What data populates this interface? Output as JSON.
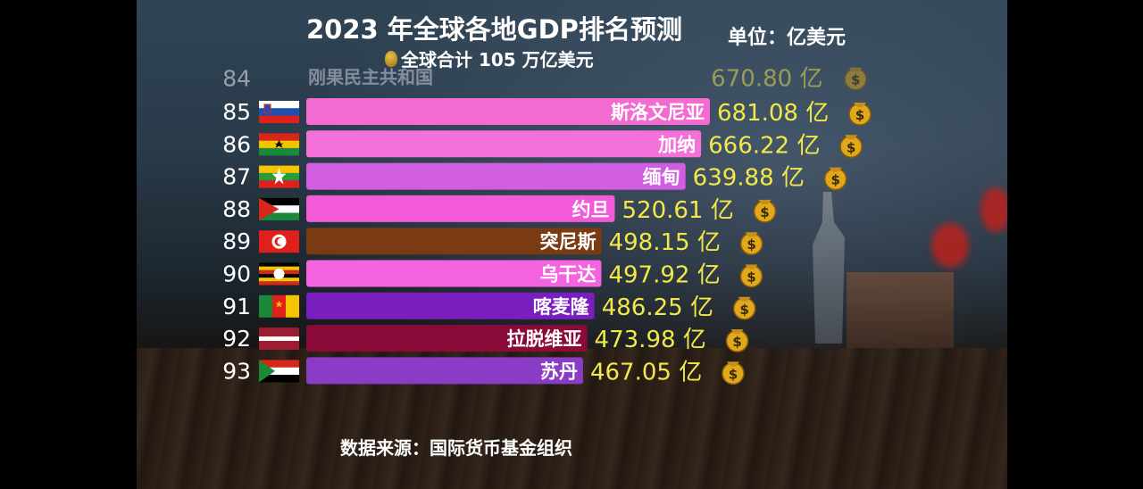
{
  "header": {
    "title": "2023 年全球各地GDP排名预测",
    "unit": "单位：亿美元",
    "total": "全球合计 105 万亿美元"
  },
  "footer": {
    "source": "数据来源：国际货币基金组织"
  },
  "chart_data": {
    "type": "bar",
    "orientation": "horizontal",
    "value_suffix": " 亿",
    "ghost": {
      "rank": "84",
      "name": "刚果民主共和国",
      "value": 670.8,
      "label": "670.80 亿"
    },
    "categories": [
      "斯洛文尼亚",
      "加纳",
      "缅甸",
      "约旦",
      "突尼斯",
      "乌干达",
      "喀麦隆",
      "拉脱维亚",
      "苏丹"
    ],
    "ranks": [
      "85",
      "86",
      "87",
      "88",
      "89",
      "90",
      "91",
      "92",
      "93"
    ],
    "values": [
      681.08,
      666.22,
      639.88,
      520.61,
      498.15,
      497.92,
      486.25,
      473.98,
      467.05
    ],
    "labels": [
      "681.08 亿",
      "666.22 亿",
      "639.88 亿",
      "520.61 亿",
      "498.15 亿",
      "497.92 亿",
      "486.25 亿",
      "473.98 亿",
      "467.05 亿"
    ],
    "bar_colors": [
      "#f36bd0",
      "#f570d8",
      "#d15de0",
      "#f25ad8",
      "#7a3a12",
      "#f564e0",
      "#7a1ec0",
      "#8a0a3a",
      "#8a3cc4"
    ],
    "flags": [
      "slovenia-flag",
      "ghana-flag",
      "myanmar-flag",
      "jordan-flag",
      "tunisia-flag",
      "uganda-flag",
      "cameroon-flag",
      "latvia-flag",
      "sudan-flag"
    ],
    "colors": {
      "rank_text": "#ffffff",
      "value_text": "#f2e84a",
      "bar_text": "#ffffff"
    }
  }
}
